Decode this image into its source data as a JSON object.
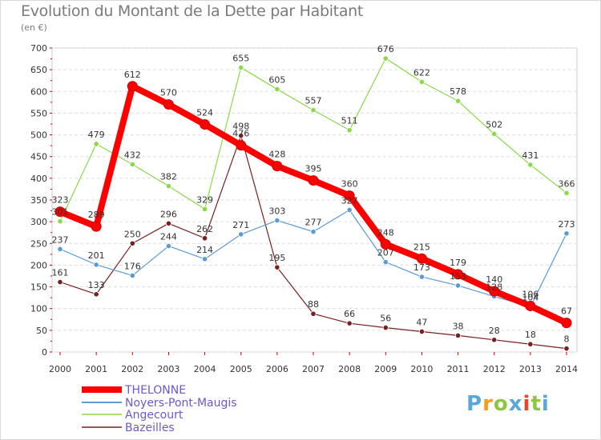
{
  "title": "Evolution du Montant de la Dette par Habitant",
  "unit": "(en €)",
  "logo": {
    "letters": [
      "P",
      "r",
      "o",
      "x",
      "i",
      "t",
      "i"
    ],
    "colors": [
      "#5aa8d8",
      "#f39c1f",
      "#8dc63f",
      "#5aa8d8",
      "#e8462b",
      "#8dc63f",
      "#5aa8d8"
    ]
  },
  "chart_data": {
    "type": "line",
    "title": "Evolution du Montant de la Dette par Habitant",
    "ylabel": "(en €)",
    "xlabel": "",
    "x": [
      "2000",
      "2001",
      "2002",
      "2003",
      "2004",
      "2005",
      "2006",
      "2007",
      "2008",
      "2009",
      "2010",
      "2011",
      "2012",
      "2013",
      "2014"
    ],
    "ylim": [
      0,
      700
    ],
    "yticks": [
      0,
      50,
      100,
      150,
      200,
      250,
      300,
      350,
      400,
      450,
      500,
      550,
      600,
      650,
      700
    ],
    "grid": "horizontal",
    "legend_position": "bottom-left",
    "series": [
      {
        "name": "THELONNE",
        "color": "#ff0000",
        "values": [
          323,
          289,
          612,
          570,
          524,
          476,
          428,
          395,
          360,
          248,
          215,
          179,
          140,
          106,
          67
        ]
      },
      {
        "name": "Noyers-Pont-Maugis",
        "color": "#5b9bd5",
        "values": [
          237,
          201,
          176,
          244,
          214,
          271,
          303,
          277,
          327,
          207,
          173,
          153,
          128,
          104,
          273
        ]
      },
      {
        "name": "Angecourt",
        "color": "#8bd848",
        "values": [
          301,
          479,
          432,
          382,
          329,
          655,
          605,
          557,
          511,
          676,
          622,
          578,
          502,
          431,
          366
        ]
      },
      {
        "name": "Bazeilles",
        "color": "#7a1f1f",
        "values": [
          161,
          133,
          250,
          296,
          262,
          498,
          195,
          88,
          66,
          56,
          47,
          38,
          28,
          18,
          8
        ]
      }
    ]
  }
}
